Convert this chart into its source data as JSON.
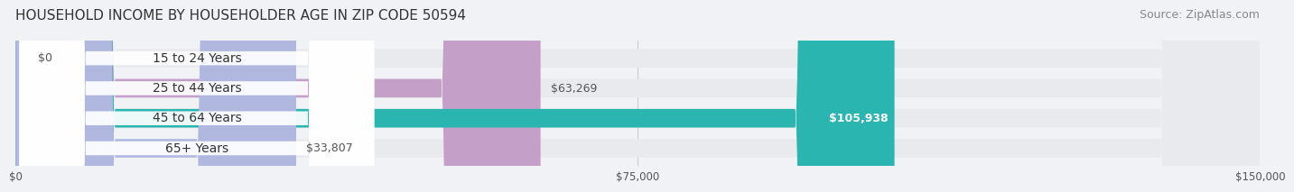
{
  "title": "HOUSEHOLD INCOME BY HOUSEHOLDER AGE IN ZIP CODE 50594",
  "source": "Source: ZipAtlas.com",
  "categories": [
    "15 to 24 Years",
    "25 to 44 Years",
    "45 to 64 Years",
    "65+ Years"
  ],
  "values": [
    0,
    63269,
    105938,
    33807
  ],
  "bar_colors": [
    "#a8c8e8",
    "#c4a0c8",
    "#2ab5b0",
    "#b0b8e0"
  ],
  "label_colors": [
    "#555555",
    "#555555",
    "#ffffff",
    "#555555"
  ],
  "value_labels": [
    "$0",
    "$63,269",
    "$105,938",
    "$33,807"
  ],
  "xlim": [
    0,
    150000
  ],
  "xticks": [
    0,
    75000,
    150000
  ],
  "xticklabels": [
    "$0",
    "$75,000",
    "$150,000"
  ],
  "bg_color": "#f0f2f5",
  "bar_bg_color": "#e8eaee",
  "title_fontsize": 11,
  "source_fontsize": 9,
  "label_fontsize": 10,
  "value_fontsize": 9
}
